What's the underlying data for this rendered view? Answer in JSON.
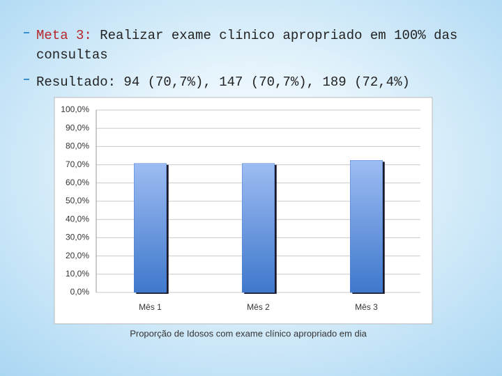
{
  "slide": {
    "bullets": [
      {
        "label": "Meta 3:",
        "text": "Realizar exame clínico apropriado em 100% das",
        "continuation": "consultas"
      },
      {
        "text": "Resultado: 94 (70,7%), 147 (70,7%), 189 (72,4%)"
      }
    ]
  },
  "chart_data": {
    "type": "bar",
    "x_label": "Proporção de Idosos com exame clínico apropriado em dia",
    "categories": [
      "Mês 1",
      "Mês 2",
      "Mês 3"
    ],
    "values": [
      70.7,
      70.7,
      72.4
    ],
    "color": "#4a7fd0",
    "ylim": [
      0,
      100
    ],
    "yticks": [
      {
        "value": 0,
        "label": "0,0%"
      },
      {
        "value": 10,
        "label": "10,0%"
      },
      {
        "value": 20,
        "label": "20,0%"
      },
      {
        "value": 30,
        "label": "30,0%"
      },
      {
        "value": 40,
        "label": "40,0%"
      },
      {
        "value": 50,
        "label": "50,0%"
      },
      {
        "value": 60,
        "label": "60,0%"
      },
      {
        "value": 70,
        "label": "70,0%"
      },
      {
        "value": 80,
        "label": "80,0%"
      },
      {
        "value": 90,
        "label": "90,0%"
      },
      {
        "value": 100,
        "label": "100,0%"
      }
    ],
    "grid": true
  }
}
